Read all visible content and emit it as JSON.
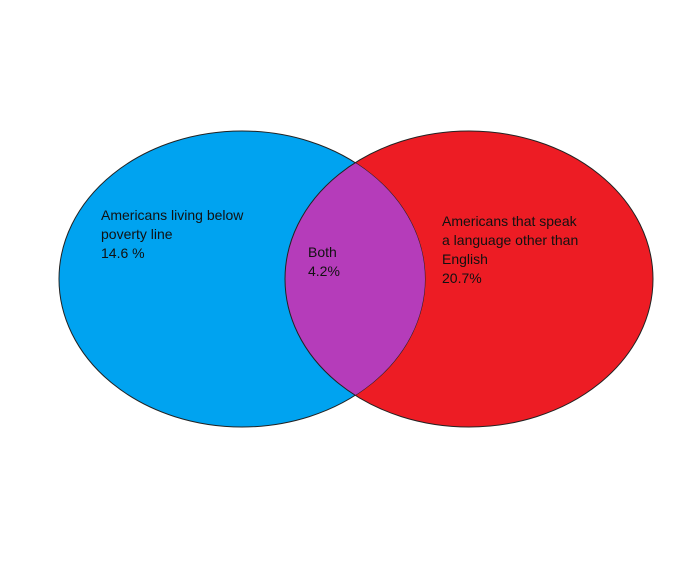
{
  "diagram": {
    "left_set": {
      "label_line1": "Americans living below",
      "label_line2": "poverty line",
      "value": "14.6 %",
      "color": "#00a3f0"
    },
    "right_set": {
      "label_line1": "Americans that speak",
      "label_line2": "a language other than",
      "label_line3": "English",
      "value": "20.7%",
      "color": "#ed1c24"
    },
    "overlap": {
      "label": "Both",
      "value": "4.2%",
      "color": "#b53cba"
    }
  }
}
